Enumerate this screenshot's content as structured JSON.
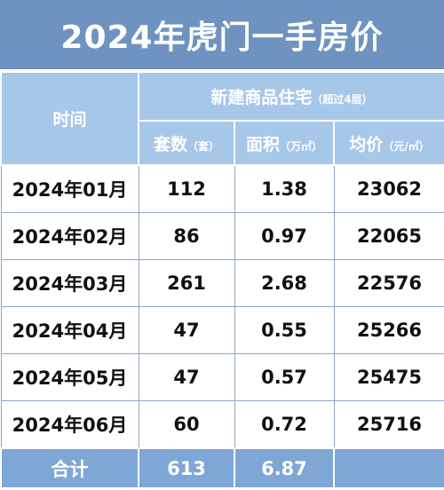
{
  "title": "2024年虎门一手房价",
  "table": {
    "header": {
      "period": "时间",
      "group": "新建商品住宅",
      "group_note": "（超过4层）",
      "columns": [
        {
          "name": "套数",
          "unit": "（套）"
        },
        {
          "name": "面积",
          "unit": "（万㎡）"
        },
        {
          "name": "均价",
          "unit": "（元/㎡）"
        }
      ]
    },
    "rows": [
      [
        "2024年01月",
        112,
        1.38,
        23062
      ],
      [
        "2024年02月",
        86,
        0.97,
        22065
      ],
      [
        "2024年03月",
        261,
        2.68,
        22576
      ],
      [
        "2024年04月",
        47,
        0.55,
        25266
      ],
      [
        "2024年05月",
        47,
        0.57,
        25475
      ],
      [
        "2024年06月",
        60,
        0.72,
        25716
      ]
    ],
    "total": [
      "合计",
      613,
      6.87
    ]
  }
}
